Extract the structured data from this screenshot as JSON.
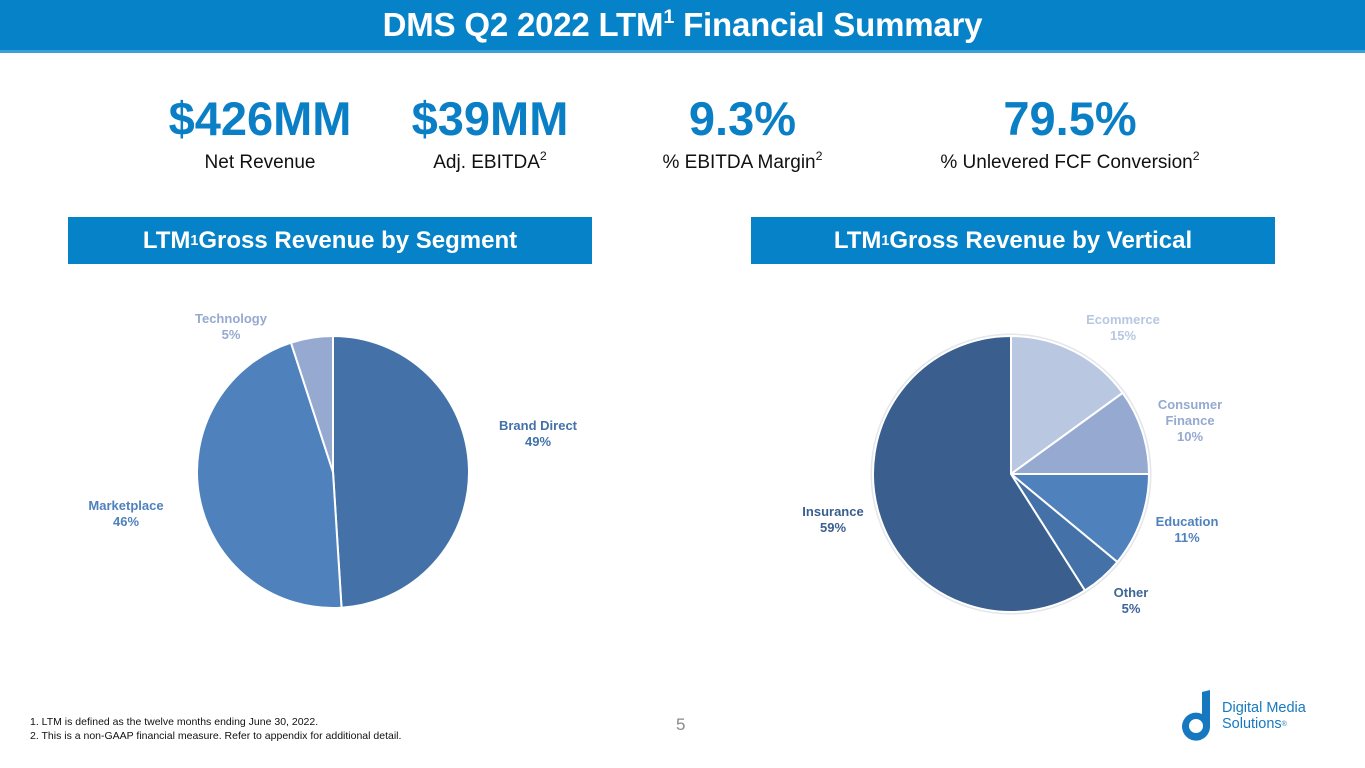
{
  "header": {
    "title_prefix": "DMS Q2 2022 LTM",
    "title_sup": "1",
    "title_suffix": " Financial Summary"
  },
  "kpis": [
    {
      "value": "$426MM",
      "label": "Net Revenue",
      "sup": ""
    },
    {
      "value": "$39MM",
      "label": "Adj. EBITDA",
      "sup": "2"
    },
    {
      "value": "9.3%",
      "label": "% EBITDA Margin",
      "sup": "2"
    },
    {
      "value": "79.5%",
      "label": "% Unlevered FCF Conversion",
      "sup": "2"
    }
  ],
  "sections": {
    "segment": {
      "prefix": "LTM",
      "sup": "1",
      "suffix": " Gross Revenue by Segment"
    },
    "vertical": {
      "prefix": "LTM",
      "sup": "1",
      "suffix": " Gross Revenue by Vertical"
    }
  },
  "chart_data": [
    {
      "type": "pie",
      "title": "LTM Gross Revenue by Segment",
      "start": "top",
      "direction": "clockwise",
      "slices": [
        {
          "label": "Brand Direct",
          "value": 49,
          "display": "49%",
          "color": "#4472a8",
          "label_color": "#4472a8"
        },
        {
          "label": "Marketplace",
          "value": 46,
          "display": "46%",
          "color": "#4f81bd",
          "label_color": "#4f81bd"
        },
        {
          "label": "Technology",
          "value": 5,
          "display": "5%",
          "color": "#95a9d1",
          "label_color": "#95a9d1"
        }
      ]
    },
    {
      "type": "pie",
      "title": "LTM Gross Revenue by Vertical",
      "start": "top",
      "direction": "clockwise",
      "slices": [
        {
          "label": "Ecommerce",
          "value": 15,
          "display": "15%",
          "color": "#b9c7e1",
          "label_color": "#b9c7e1"
        },
        {
          "label": "Consumer Finance",
          "value": 10,
          "display": "10%",
          "color": "#95a9d1",
          "label_color": "#95a9d1"
        },
        {
          "label": "Education",
          "value": 11,
          "display": "11%",
          "color": "#4f81bd",
          "label_color": "#4f81bd"
        },
        {
          "label": "Other",
          "value": 5,
          "display": "5%",
          "color": "#4472a8",
          "label_color": "#3d6596"
        },
        {
          "label": "Insurance",
          "value": 59,
          "display": "59%",
          "color": "#3a5f8f",
          "label_color": "#3a5f8f"
        }
      ]
    }
  ],
  "footnotes": [
    "1. LTM is defined as the twelve months ending June 30, 2022.",
    "2. This is a non-GAAP financial measure. Refer to appendix for additional detail."
  ],
  "page_number": "5",
  "logo": {
    "line1": "Digital Media",
    "line2": "Solutions",
    "mark": "®",
    "color": "#1679c0"
  }
}
